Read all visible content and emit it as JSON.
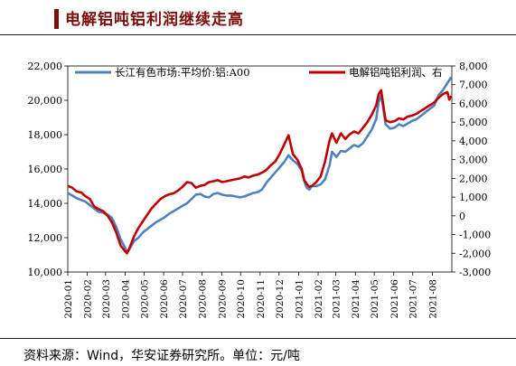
{
  "header": {
    "title": "电解铝吨铝利润继续走高"
  },
  "footer": {
    "source": "资料来源：Wind，华安证券研究所。单位：元/吨"
  },
  "chart_data": {
    "type": "line",
    "title": "电解铝吨铝利润继续走高",
    "x": [
      "2020-01",
      "2020-02",
      "2020-03",
      "2020-04",
      "2020-05",
      "2020-06",
      "2020-07",
      "2020-08",
      "2020-09",
      "2020-10",
      "2020-11",
      "2020-12",
      "2021-01",
      "2021-02",
      "2021-03",
      "2021-04",
      "2021-05",
      "2021-06",
      "2021-07",
      "2021-08"
    ],
    "x_tick_labels": [
      "2020-01",
      "2020-02",
      "2020-03",
      "2020-04",
      "2020-05",
      "2020-06",
      "2020-07",
      "2020-08",
      "2020-09",
      "2020-10",
      "2020-11",
      "2020-12",
      "2021-01",
      "2021-02",
      "2021-03",
      "2021-04",
      "2021-05",
      "2021-06",
      "2021-07",
      "2021-08"
    ],
    "y_left": {
      "range": [
        10000,
        22000
      ],
      "ticks": [
        10000,
        12000,
        14000,
        16000,
        18000,
        20000,
        22000
      ],
      "tick_labels": [
        "10,000",
        "12,000",
        "14,000",
        "16,000",
        "18,000",
        "20,000",
        "22,000"
      ]
    },
    "y_right": {
      "range": [
        -3000,
        8000
      ],
      "ticks": [
        -3000,
        -2000,
        -1000,
        0,
        1000,
        2000,
        3000,
        4000,
        5000,
        6000,
        7000,
        8000
      ],
      "tick_labels": [
        "-3,000",
        "-2,000",
        "-1,000",
        "0",
        "1,000",
        "2,000",
        "3,000",
        "4,000",
        "5,000",
        "6,000",
        "7,000",
        "8,000"
      ]
    },
    "grid": false,
    "legend_position": "top",
    "series": [
      {
        "name": "长江有色市场:平均价:铝:A00",
        "axis": "left",
        "color": "#4f81bd",
        "points": [
          [
            "2020-01-01",
            14600
          ],
          [
            "2020-01-08",
            14450
          ],
          [
            "2020-01-15",
            14300
          ],
          [
            "2020-01-22",
            14200
          ],
          [
            "2020-01-29",
            14100
          ],
          [
            "2020-02-05",
            13900
          ],
          [
            "2020-02-12",
            13700
          ],
          [
            "2020-02-19",
            13500
          ],
          [
            "2020-02-26",
            13450
          ],
          [
            "2020-03-04",
            13350
          ],
          [
            "2020-03-11",
            13150
          ],
          [
            "2020-03-18",
            12600
          ],
          [
            "2020-03-25",
            11900
          ],
          [
            "2020-04-01",
            11400
          ],
          [
            "2020-04-04",
            11150
          ],
          [
            "2020-04-08",
            11350
          ],
          [
            "2020-04-15",
            11800
          ],
          [
            "2020-04-22",
            12000
          ],
          [
            "2020-04-29",
            12300
          ],
          [
            "2020-05-06",
            12500
          ],
          [
            "2020-05-13",
            12700
          ],
          [
            "2020-05-20",
            12900
          ],
          [
            "2020-05-27",
            13050
          ],
          [
            "2020-06-03",
            13200
          ],
          [
            "2020-06-10",
            13400
          ],
          [
            "2020-06-17",
            13550
          ],
          [
            "2020-06-24",
            13700
          ],
          [
            "2020-07-01",
            13850
          ],
          [
            "2020-07-08",
            14000
          ],
          [
            "2020-07-15",
            14250
          ],
          [
            "2020-07-22",
            14500
          ],
          [
            "2020-07-29",
            14550
          ],
          [
            "2020-08-05",
            14400
          ],
          [
            "2020-08-12",
            14350
          ],
          [
            "2020-08-19",
            14550
          ],
          [
            "2020-08-26",
            14600
          ],
          [
            "2020-09-02",
            14500
          ],
          [
            "2020-09-09",
            14450
          ],
          [
            "2020-09-16",
            14450
          ],
          [
            "2020-09-23",
            14400
          ],
          [
            "2020-09-30",
            14350
          ],
          [
            "2020-10-07",
            14400
          ],
          [
            "2020-10-14",
            14500
          ],
          [
            "2020-10-21",
            14600
          ],
          [
            "2020-10-28",
            14650
          ],
          [
            "2020-11-04",
            14800
          ],
          [
            "2020-11-11",
            15200
          ],
          [
            "2020-11-18",
            15500
          ],
          [
            "2020-11-25",
            15800
          ],
          [
            "2020-12-02",
            16100
          ],
          [
            "2020-12-09",
            16400
          ],
          [
            "2020-12-16",
            16800
          ],
          [
            "2020-12-23",
            16500
          ],
          [
            "2020-12-30",
            16300
          ],
          [
            "2021-01-06",
            15900
          ],
          [
            "2021-01-10",
            15300
          ],
          [
            "2021-01-14",
            14900
          ],
          [
            "2021-01-18",
            14800
          ],
          [
            "2021-01-22",
            15000
          ],
          [
            "2021-01-29",
            15000
          ],
          [
            "2021-02-05",
            15100
          ],
          [
            "2021-02-12",
            15400
          ],
          [
            "2021-02-19",
            16200
          ],
          [
            "2021-02-23",
            17000
          ],
          [
            "2021-03-02",
            16700
          ],
          [
            "2021-03-09",
            17050
          ],
          [
            "2021-03-16",
            17000
          ],
          [
            "2021-03-23",
            17200
          ],
          [
            "2021-03-30",
            17400
          ],
          [
            "2021-04-06",
            17300
          ],
          [
            "2021-04-13",
            17500
          ],
          [
            "2021-04-20",
            17900
          ],
          [
            "2021-04-27",
            18300
          ],
          [
            "2021-05-04",
            18900
          ],
          [
            "2021-05-08",
            19900
          ],
          [
            "2021-05-12",
            20300
          ],
          [
            "2021-05-15",
            19600
          ],
          [
            "2021-05-19",
            18600
          ],
          [
            "2021-05-26",
            18350
          ],
          [
            "2021-06-02",
            18400
          ],
          [
            "2021-06-09",
            18600
          ],
          [
            "2021-06-16",
            18500
          ],
          [
            "2021-06-23",
            18650
          ],
          [
            "2021-06-30",
            18800
          ],
          [
            "2021-07-07",
            18900
          ],
          [
            "2021-07-14",
            19100
          ],
          [
            "2021-07-21",
            19300
          ],
          [
            "2021-07-28",
            19500
          ],
          [
            "2021-08-04",
            19700
          ],
          [
            "2021-08-11",
            20300
          ],
          [
            "2021-08-18",
            20600
          ],
          [
            "2021-08-25",
            21000
          ],
          [
            "2021-08-31",
            21350
          ]
        ]
      },
      {
        "name": "电解铝吨铝利润、右",
        "axis": "right",
        "color": "#c00000",
        "points": [
          [
            "2020-01-01",
            1600
          ],
          [
            "2020-01-08",
            1500
          ],
          [
            "2020-01-15",
            1300
          ],
          [
            "2020-01-22",
            1250
          ],
          [
            "2020-01-29",
            1050
          ],
          [
            "2020-02-05",
            900
          ],
          [
            "2020-02-12",
            500
          ],
          [
            "2020-02-19",
            350
          ],
          [
            "2020-02-26",
            250
          ],
          [
            "2020-03-04",
            0
          ],
          [
            "2020-03-11",
            -350
          ],
          [
            "2020-03-18",
            -900
          ],
          [
            "2020-03-25",
            -1600
          ],
          [
            "2020-04-01",
            -1900
          ],
          [
            "2020-04-04",
            -2000
          ],
          [
            "2020-04-08",
            -1700
          ],
          [
            "2020-04-15",
            -1100
          ],
          [
            "2020-04-22",
            -650
          ],
          [
            "2020-04-29",
            -300
          ],
          [
            "2020-05-06",
            50
          ],
          [
            "2020-05-13",
            400
          ],
          [
            "2020-05-20",
            650
          ],
          [
            "2020-05-27",
            900
          ],
          [
            "2020-06-03",
            1050
          ],
          [
            "2020-06-10",
            1150
          ],
          [
            "2020-06-17",
            1200
          ],
          [
            "2020-06-24",
            1350
          ],
          [
            "2020-07-01",
            1550
          ],
          [
            "2020-07-08",
            1800
          ],
          [
            "2020-07-15",
            1750
          ],
          [
            "2020-07-22",
            1500
          ],
          [
            "2020-07-29",
            1600
          ],
          [
            "2020-08-05",
            1650
          ],
          [
            "2020-08-12",
            1800
          ],
          [
            "2020-08-19",
            1850
          ],
          [
            "2020-08-26",
            1900
          ],
          [
            "2020-09-02",
            1800
          ],
          [
            "2020-09-09",
            1850
          ],
          [
            "2020-09-16",
            1900
          ],
          [
            "2020-09-23",
            1950
          ],
          [
            "2020-09-30",
            2000
          ],
          [
            "2020-10-07",
            2100
          ],
          [
            "2020-10-14",
            2050
          ],
          [
            "2020-10-21",
            2150
          ],
          [
            "2020-10-28",
            2200
          ],
          [
            "2020-11-04",
            2300
          ],
          [
            "2020-11-11",
            2450
          ],
          [
            "2020-11-18",
            2700
          ],
          [
            "2020-11-25",
            2900
          ],
          [
            "2020-12-02",
            3300
          ],
          [
            "2020-12-09",
            3800
          ],
          [
            "2020-12-16",
            4300
          ],
          [
            "2020-12-23",
            3300
          ],
          [
            "2020-12-30",
            3000
          ],
          [
            "2021-01-06",
            2500
          ],
          [
            "2021-01-10",
            1900
          ],
          [
            "2021-01-14",
            1700
          ],
          [
            "2021-01-18",
            1550
          ],
          [
            "2021-01-22",
            1600
          ],
          [
            "2021-01-29",
            1800
          ],
          [
            "2021-02-05",
            2100
          ],
          [
            "2021-02-12",
            2900
          ],
          [
            "2021-02-19",
            4000
          ],
          [
            "2021-02-23",
            4400
          ],
          [
            "2021-03-02",
            3900
          ],
          [
            "2021-03-09",
            4400
          ],
          [
            "2021-03-16",
            4100
          ],
          [
            "2021-03-23",
            4350
          ],
          [
            "2021-03-30",
            4500
          ],
          [
            "2021-04-06",
            4400
          ],
          [
            "2021-04-13",
            4700
          ],
          [
            "2021-04-20",
            5000
          ],
          [
            "2021-04-27",
            5400
          ],
          [
            "2021-05-04",
            5900
          ],
          [
            "2021-05-08",
            6500
          ],
          [
            "2021-05-12",
            6700
          ],
          [
            "2021-05-15",
            6000
          ],
          [
            "2021-05-19",
            5100
          ],
          [
            "2021-05-26",
            5000
          ],
          [
            "2021-06-02",
            5050
          ],
          [
            "2021-06-09",
            5200
          ],
          [
            "2021-06-16",
            5150
          ],
          [
            "2021-06-23",
            5300
          ],
          [
            "2021-06-30",
            5350
          ],
          [
            "2021-07-07",
            5450
          ],
          [
            "2021-07-14",
            5600
          ],
          [
            "2021-07-21",
            5750
          ],
          [
            "2021-07-28",
            5900
          ],
          [
            "2021-08-04",
            6050
          ],
          [
            "2021-08-11",
            6300
          ],
          [
            "2021-08-18",
            6500
          ],
          [
            "2021-08-25",
            6600
          ],
          [
            "2021-08-28",
            6200
          ],
          [
            "2021-08-31",
            6400
          ]
        ]
      }
    ]
  }
}
